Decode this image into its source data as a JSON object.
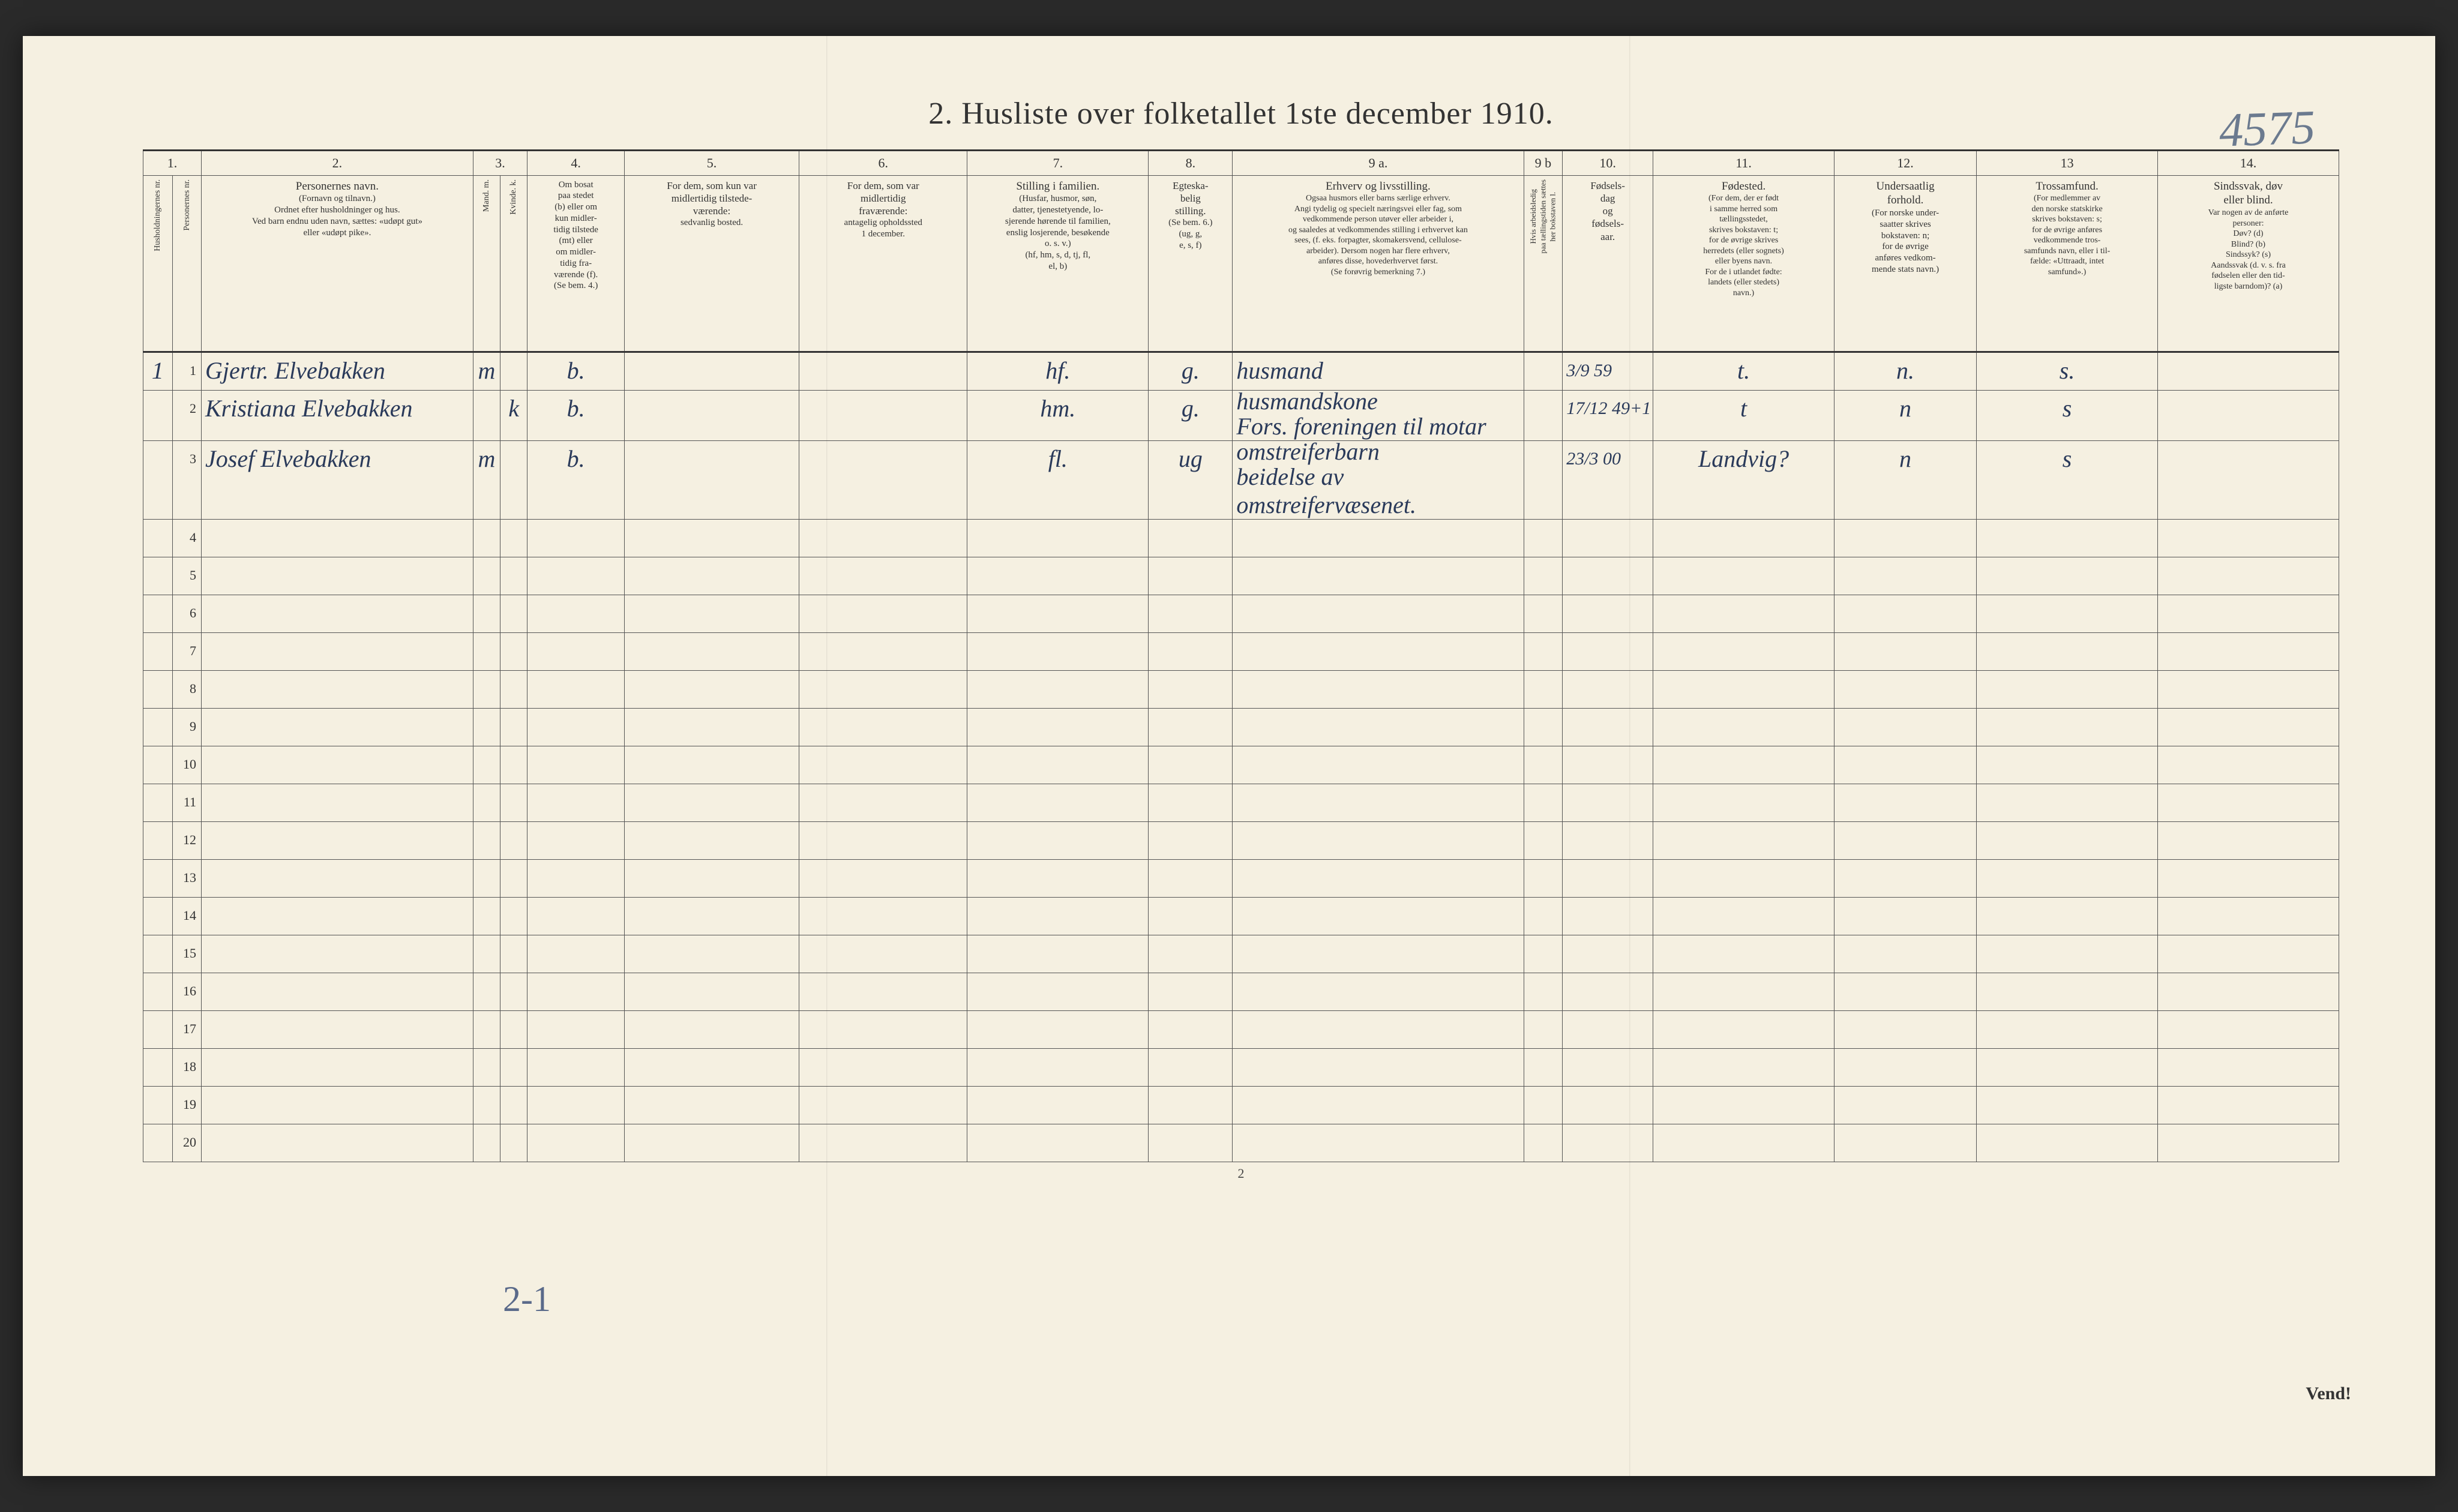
{
  "document": {
    "title": "2.  Husliste over folketallet 1ste december 1910.",
    "top_annotation": "4575",
    "page_number": "2",
    "turn_over": "Vend!",
    "bottom_annotation": "2-1"
  },
  "columns": {
    "numbers": [
      "1.",
      "",
      "2.",
      "3.",
      "",
      "4.",
      "5.",
      "6.",
      "7.",
      "8.",
      "9 a.",
      "9 b",
      "10.",
      "11.",
      "12.",
      "13",
      "14."
    ],
    "headers": [
      {
        "title": "Husholdningernes nr.",
        "sub": ""
      },
      {
        "title": "Personernes nr.",
        "sub": ""
      },
      {
        "title": "Personernes navn.",
        "sub": "(Fornavn og tilnavn.)\nOrdnet efter husholdninger og hus.\nVed barn endnu uden navn, sættes: «udøpt gut»\neller «udøpt pike»."
      },
      {
        "title": "Kjøn.",
        "sub": "Mand.\n\nm."
      },
      {
        "title": "",
        "sub": "Kvinde.\n\nk."
      },
      {
        "title": "Om bosat\npaa stedet\n(b) eller om\nkun midler-\ntidig tilstede\n(mt) eller\nom midler-\ntidig fra-\nværende (f).\n(Se bem. 4.)",
        "sub": ""
      },
      {
        "title": "For dem, som kun var\nmidlertidig tilstede-\nværende:",
        "sub": "sedvanlig bosted."
      },
      {
        "title": "For dem, som var\nmidlertidig\nfraværende:",
        "sub": "antagelig opholdssted\n1 december."
      },
      {
        "title": "Stilling i familien.",
        "sub": "(Husfar, husmor, søn,\ndatter, tjenestetyende, lo-\nsjerende hørende til familien,\nenslig losjerende, besøkende\no. s. v.)\n(hf, hm, s, d, tj, fl,\nel, b)"
      },
      {
        "title": "Egteska-\nbelig\nstilling.",
        "sub": "(Se bem. 6.)\n(ug, g,\ne, s, f)"
      },
      {
        "title": "Erhverv og livsstilling.",
        "sub": "Ogsaa husmors eller barns særlige erhverv.\nAngi tydelig og specielt næringsvei eller fag, som\nvedkommende person utøver eller arbeider i,\nog saaledes at vedkommendes stilling i erhvervet kan\nsees, (f. eks. forpagter, skomakersvend, cellulose-\narbeider). Dersom nogen har flere erhverv,\nanføres disse, hovederhvervet først.\n(Se forøvrig bemerkning 7.)"
      },
      {
        "title": "Hvis arbeidsledig\npaa tællingstiden sættes\nher bokstaven l.",
        "sub": ""
      },
      {
        "title": "Fødsels-\ndag\nog\nfødsels-\naar.",
        "sub": ""
      },
      {
        "title": "Fødested.",
        "sub": "(For dem, der er født\ni samme herred som\ntællingsstedet,\nskrives bokstaven: t;\nfor de øvrige skrives\nherredets (eller sognets)\neller byens navn.\nFor de i utlandet fødte:\nlandets (eller stedets)\nnavn.)"
      },
      {
        "title": "Undersaatlig\nforhold.",
        "sub": "(For norske under-\nsaatter skrives\nbokstaven: n;\nfor de øvrige\nanføres vedkom-\nmende stats navn.)"
      },
      {
        "title": "Trossamfund.",
        "sub": "(For medlemmer av\nden norske statskirke\nskrives bokstaven: s;\nfor de øvrige anføres\nvedkommende tros-\nsamfunds navn, eller i til-\nfælde: «Uttraadt, intet\nsamfund».)"
      },
      {
        "title": "Sindssvak, døv\neller blind.",
        "sub": "Var nogen av de anførte\npersoner:\nDøv?        (d)\nBlind?      (b)\nSindssyk? (s)\nAandssvak (d. v. s. fra\nfødselen eller den tid-\nligste barndom)? (a)"
      }
    ]
  },
  "rows": [
    {
      "hnr": "1",
      "pnr": "1",
      "name": "Gjertr. Elvebakken",
      "m": "m",
      "k": "",
      "bosat": "b.",
      "c5": "",
      "c6": "",
      "c7": "hf.",
      "c8": "g.",
      "c9a": "husmand",
      "c9b": "",
      "c10": "3/9 59",
      "c11": "t.",
      "c12": "n.",
      "c13": "s.",
      "c14": ""
    },
    {
      "hnr": "",
      "pnr": "2",
      "name": "Kristiana Elvebakken",
      "m": "",
      "k": "k",
      "bosat": "b.",
      "c5": "",
      "c6": "",
      "c7": "hm.",
      "c8": "g.",
      "c9a": "husmandskone",
      "c9a_red": "Fors. foreningen til motar",
      "c9b": "",
      "c10": "17/12 49+1",
      "c11": "t",
      "c12": "n",
      "c13": "s",
      "c14": ""
    },
    {
      "hnr": "",
      "pnr": "3",
      "name": "Josef Elvebakken",
      "m": "m",
      "k": "",
      "bosat": "b.",
      "c5": "",
      "c6": "",
      "c7": "fl.",
      "c8": "ug",
      "c9a": "omstreiferbarn",
      "c9a_red2": "beidelse av omstreifervæsenet.",
      "c9b": "",
      "c10": "23/3 00",
      "c11": "Landvig?",
      "c12": "n",
      "c13": "s",
      "c14": ""
    },
    {
      "pnr": "4"
    },
    {
      "pnr": "5"
    },
    {
      "pnr": "6"
    },
    {
      "pnr": "7"
    },
    {
      "pnr": "8"
    },
    {
      "pnr": "9"
    },
    {
      "pnr": "10"
    },
    {
      "pnr": "11"
    },
    {
      "pnr": "12"
    },
    {
      "pnr": "13"
    },
    {
      "pnr": "14"
    },
    {
      "pnr": "15"
    },
    {
      "pnr": "16"
    },
    {
      "pnr": "17"
    },
    {
      "pnr": "18"
    },
    {
      "pnr": "19"
    },
    {
      "pnr": "20"
    }
  ],
  "styling": {
    "page_bg": "#f5f0e1",
    "ink": "#333333",
    "handwriting_color": "#2a3a5a",
    "red_ink": "#c0392b",
    "pencil_color": "#6b7a8f",
    "border_color": "#555555",
    "title_fontsize": 52,
    "header_fontsize": 17,
    "body_row_height": 62
  }
}
